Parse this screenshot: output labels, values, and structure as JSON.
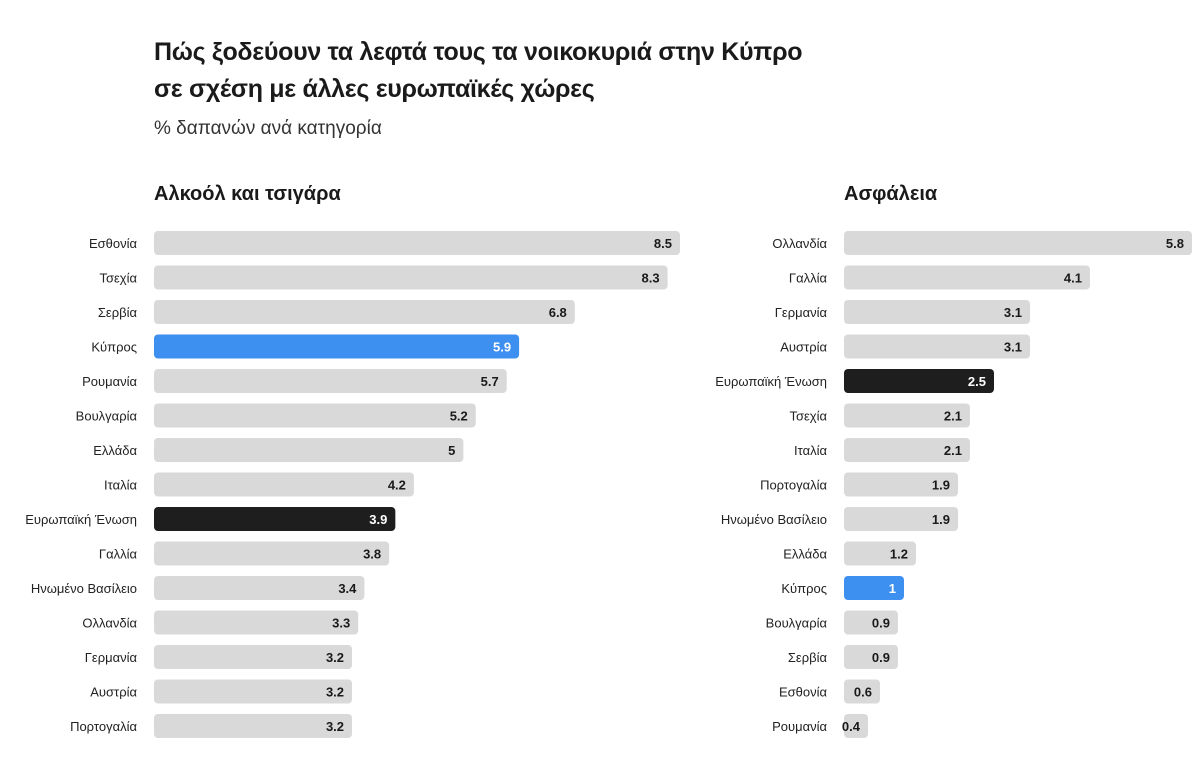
{
  "title_line1": "Πώς ξοδεύουν τα λεφτά τους τα νοικοκυριά στην Κύπρο",
  "title_line2": "σε σχέση με άλλες ευρωπαϊκές χώρες",
  "subtitle": "% δαπανών ανά κατηγορία",
  "colors": {
    "default_bar": "#d9d9d9",
    "highlight_cyprus": "#3d8ff0",
    "highlight_eu": "#1e1e1e",
    "label_dark": "#1a1a1a",
    "label_light": "#ffffff"
  },
  "chart_data": [
    {
      "type": "bar",
      "orientation": "horizontal",
      "title": "Αλκοόλ και τσιγάρα",
      "categories": [
        "Εσθονία",
        "Τσεχία",
        "Σερβία",
        "Κύπρος",
        "Ρουμανία",
        "Βουλγαρία",
        "Ελλάδα",
        "Ιταλία",
        "Ευρωπαϊκή Ένωση",
        "Γαλλία",
        "Ηνωμένο Βασίλειο",
        "Ολλανδία",
        "Γερμανία",
        "Αυστρία",
        "Πορτογαλία"
      ],
      "values": [
        8.5,
        8.3,
        6.8,
        5.9,
        5.7,
        5.2,
        5,
        4.2,
        3.9,
        3.8,
        3.4,
        3.3,
        3.2,
        3.2,
        3.2
      ],
      "value_labels": [
        "8.5",
        "8.3",
        "6.8",
        "5.9",
        "5.7",
        "5.2",
        "5",
        "4.2",
        "3.9",
        "3.8",
        "3.4",
        "3.3",
        "3.2",
        "3.2",
        "3.2"
      ],
      "highlight": {
        "Κύπρος": "cyprus",
        "Ευρωπαϊκή Ένωση": "eu"
      },
      "xlim": [
        0,
        8.5
      ]
    },
    {
      "type": "bar",
      "orientation": "horizontal",
      "title": "Ασφάλεια",
      "categories": [
        "Ολλανδία",
        "Γαλλία",
        "Γερμανία",
        "Αυστρία",
        "Ευρωπαϊκή Ένωση",
        "Τσεχία",
        "Ιταλία",
        "Πορτογαλία",
        "Ηνωμένο Βασίλειο",
        "Ελλάδα",
        "Κύπρος",
        "Βουλγαρία",
        "Σερβία",
        "Εσθονία",
        "Ρουμανία"
      ],
      "values": [
        5.8,
        4.1,
        3.1,
        3.1,
        2.5,
        2.1,
        2.1,
        1.9,
        1.9,
        1.2,
        1,
        0.9,
        0.9,
        0.6,
        0.4
      ],
      "value_labels": [
        "5.8",
        "4.1",
        "3.1",
        "3.1",
        "2.5",
        "2.1",
        "2.1",
        "1.9",
        "1.9",
        "1.2",
        "1",
        "0.9",
        "0.9",
        "0.6",
        "0.4"
      ],
      "highlight": {
        "Κύπρος": "cyprus",
        "Ευρωπαϊκή Ένωση": "eu"
      },
      "xlim": [
        0,
        5.8
      ]
    }
  ]
}
